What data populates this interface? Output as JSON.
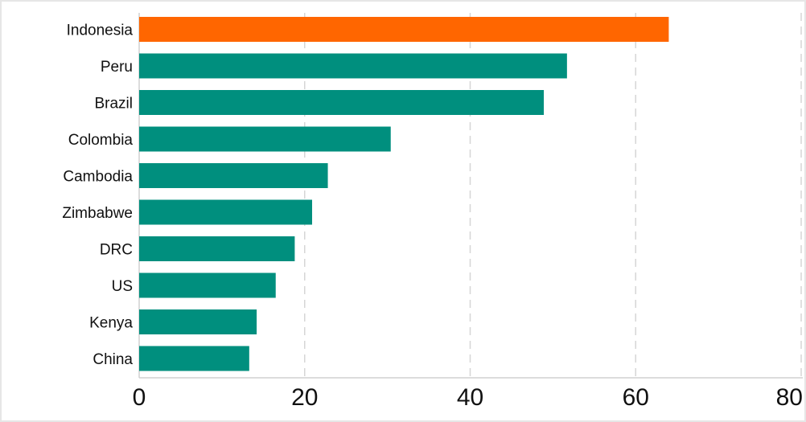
{
  "chart_data": {
    "type": "bar",
    "orientation": "horizontal",
    "title": "",
    "xlabel": "",
    "ylabel": "",
    "categories": [
      "Indonesia",
      "Peru",
      "Brazil",
      "Colombia",
      "Cambodia",
      "Zimbabwe",
      "DRC",
      "US",
      "Kenya",
      "China"
    ],
    "values": [
      64.0,
      51.7,
      48.9,
      30.4,
      22.8,
      20.9,
      18.8,
      16.5,
      14.2,
      13.3
    ],
    "highlight": "Indonesia",
    "xlim": [
      0,
      80
    ],
    "xticks": [
      0,
      20,
      40,
      60,
      80
    ],
    "xtick_labels": [
      "0",
      "20",
      "40",
      "60",
      "80"
    ],
    "grid": "vertical dashed",
    "colors": {
      "default": "#008f7e",
      "highlight": "#ff6600",
      "grid": "#d6d6d6",
      "axis": "#d0d0d0"
    }
  }
}
